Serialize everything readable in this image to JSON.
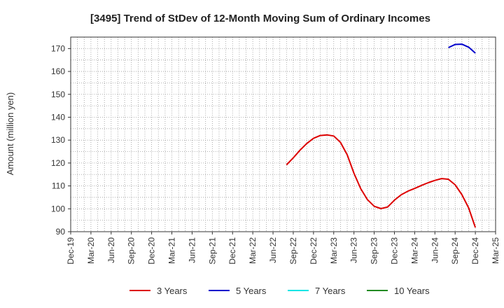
{
  "chart_data": {
    "type": "line",
    "title": "[3495]  Trend of StDev of 12-Month Moving Sum of Ordinary Incomes",
    "ylabel": "Amount (million yen)",
    "xlabel": "",
    "ylim": [
      90,
      175
    ],
    "yticks": [
      90,
      100,
      110,
      120,
      130,
      140,
      150,
      160,
      170
    ],
    "x_ticks": [
      "Dec-19",
      "Mar-20",
      "Jun-20",
      "Sep-20",
      "Dec-20",
      "Mar-21",
      "Jun-21",
      "Sep-21",
      "Dec-21",
      "Mar-22",
      "Jun-22",
      "Sep-22",
      "Dec-22",
      "Mar-23",
      "Jun-23",
      "Sep-23",
      "Dec-23",
      "Mar-24",
      "Jun-24",
      "Sep-24",
      "Dec-24",
      "Mar-25"
    ],
    "x_start": "Dec-19",
    "grid": true,
    "legend_position": "bottom",
    "series": [
      {
        "name": "3 Years",
        "color": "#dd0000",
        "x": [
          "Aug-22",
          "Sep-22",
          "Oct-22",
          "Nov-22",
          "Dec-22",
          "Jan-23",
          "Feb-23",
          "Mar-23",
          "Apr-23",
          "May-23",
          "Jun-23",
          "Jul-23",
          "Aug-23",
          "Sep-23",
          "Oct-23",
          "Nov-23",
          "Dec-23",
          "Jan-24",
          "Feb-24",
          "Mar-24",
          "Apr-24",
          "May-24",
          "Jun-24",
          "Jul-24",
          "Aug-24",
          "Sep-24",
          "Oct-24",
          "Nov-24",
          "Dec-24"
        ],
        "values": [
          119.2,
          122.3,
          125.6,
          128.5,
          130.8,
          132.0,
          132.3,
          131.8,
          129.0,
          123.6,
          115.5,
          108.8,
          104.0,
          101.1,
          100.1,
          100.8,
          103.8,
          106.1,
          107.7,
          108.9,
          110.2,
          111.4,
          112.4,
          113.2,
          112.9,
          110.5,
          106.2,
          100.4,
          91.8
        ]
      },
      {
        "name": "5 Years",
        "color": "#0000cc",
        "x": [
          "Aug-24",
          "Sep-24",
          "Oct-24",
          "Nov-24",
          "Dec-24"
        ],
        "values": [
          170.4,
          171.8,
          171.9,
          170.6,
          168.0
        ]
      },
      {
        "name": "7 Years",
        "color": "#00e5e5",
        "x": [],
        "values": []
      },
      {
        "name": "10 Years",
        "color": "#228b22",
        "x": [],
        "values": []
      }
    ]
  }
}
